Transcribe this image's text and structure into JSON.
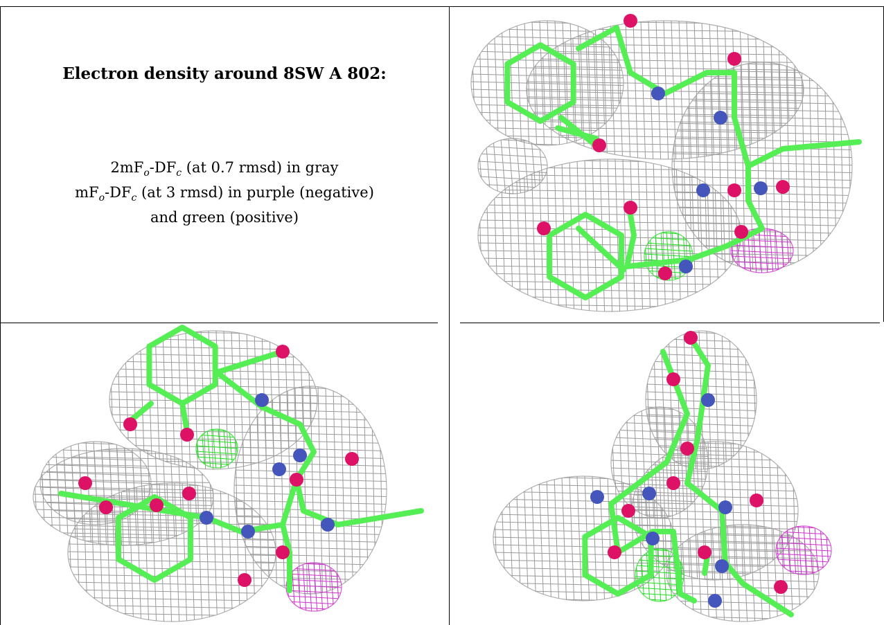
{
  "caption": {
    "title": "Electron density around 8SW A 802:",
    "line1": {
      "pre": "2mF",
      "o": "o",
      "mid": "-DF",
      "c": "c",
      "post": " (at 0.7 rmsd) in gray"
    },
    "line2": {
      "pre": "mF",
      "o": "o",
      "mid": "-DF",
      "c": "c",
      "post": " (at 3 rmsd) in purple (negative)"
    },
    "line3": "and green (positive)"
  },
  "colors": {
    "mesh_2fofc": "#9a9a9a",
    "mesh_positive": "#22dd22",
    "mesh_negative": "#cc33cc",
    "carbon": "#55ee55",
    "nitrogen": "#4455bb",
    "oxygen": "#dd1166"
  },
  "panels": [
    {
      "name": "view-top-right",
      "icon": "ligand-density-view"
    },
    {
      "name": "view-bottom-left",
      "icon": "ligand-density-view"
    },
    {
      "name": "view-bottom-right",
      "icon": "ligand-density-view"
    }
  ]
}
